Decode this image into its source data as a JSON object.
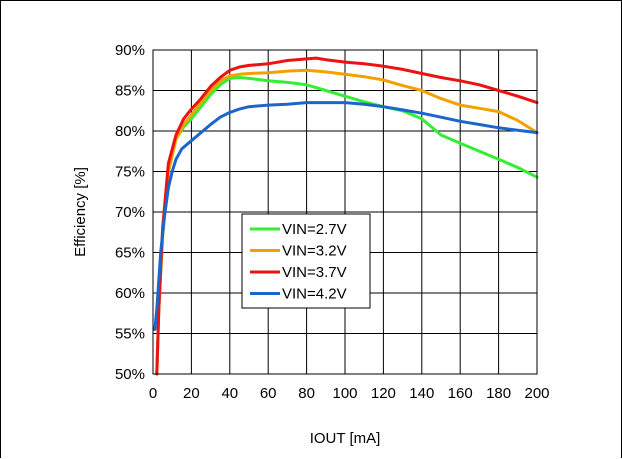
{
  "chart_data": {
    "type": "line",
    "title": "",
    "xlabel": "IOUT [mA]",
    "ylabel": "Efficiency [%]",
    "xlim": [
      0,
      200
    ],
    "ylim": [
      50,
      90
    ],
    "x_ticks": [
      0,
      20,
      40,
      60,
      80,
      100,
      120,
      140,
      160,
      180,
      200
    ],
    "y_ticks": [
      50,
      55,
      60,
      65,
      70,
      75,
      80,
      85,
      90
    ],
    "y_tick_suffix": "%",
    "grid": true,
    "legend_position": "center-left",
    "series": [
      {
        "name": "VIN=2.7V",
        "color": "#33ee33",
        "x": [
          2,
          3,
          5,
          8,
          12,
          16,
          20,
          25,
          30,
          35,
          40,
          45,
          50,
          60,
          70,
          80,
          90,
          100,
          110,
          120,
          130,
          140,
          150,
          160,
          170,
          180,
          190,
          200
        ],
        "y": [
          50,
          58,
          67,
          75,
          79,
          80.5,
          81.5,
          83,
          84.5,
          85.7,
          86.5,
          86.6,
          86.5,
          86.2,
          86,
          85.7,
          85,
          84.3,
          83.6,
          83,
          82.5,
          81.5,
          79.5,
          78.5,
          77.5,
          76.5,
          75.5,
          74.3
        ]
      },
      {
        "name": "VIN=3.2V",
        "color": "#f5a000",
        "x": [
          2,
          3,
          5,
          8,
          12,
          16,
          20,
          25,
          30,
          35,
          40,
          45,
          50,
          60,
          70,
          80,
          90,
          100,
          110,
          120,
          130,
          140,
          150,
          160,
          170,
          180,
          190,
          200
        ],
        "y": [
          50,
          58,
          67,
          75,
          79,
          80.8,
          82,
          83.5,
          85,
          86.2,
          86.8,
          87,
          87.1,
          87.2,
          87.4,
          87.5,
          87.3,
          87,
          86.7,
          86.3,
          85.6,
          85,
          84,
          83.2,
          82.8,
          82.4,
          81.3,
          79.8
        ]
      },
      {
        "name": "VIN=3.7V",
        "color": "#ee1111",
        "x": [
          2,
          3,
          5,
          8,
          12,
          16,
          20,
          25,
          30,
          35,
          40,
          45,
          50,
          60,
          70,
          80,
          85,
          90,
          100,
          110,
          120,
          130,
          140,
          150,
          160,
          170,
          180,
          190,
          200
        ],
        "y": [
          50,
          58,
          68,
          76,
          79.5,
          81.5,
          82.7,
          84,
          85.5,
          86.6,
          87.5,
          87.9,
          88.1,
          88.3,
          88.7,
          88.9,
          89,
          88.8,
          88.5,
          88.3,
          88,
          87.6,
          87.1,
          86.6,
          86.2,
          85.7,
          85,
          84.3,
          83.5
        ]
      },
      {
        "name": "VIN=4.2V",
        "color": "#1a66cc",
        "x": [
          1,
          2,
          4,
          6,
          8,
          10,
          12,
          15,
          20,
          25,
          30,
          35,
          40,
          45,
          50,
          60,
          70,
          80,
          90,
          100,
          110,
          120,
          130,
          140,
          150,
          160,
          170,
          180,
          190,
          200
        ],
        "y": [
          55.5,
          58,
          65,
          69.5,
          73,
          75,
          76.5,
          77.8,
          78.8,
          79.8,
          80.8,
          81.7,
          82.3,
          82.7,
          83,
          83.2,
          83.3,
          83.5,
          83.5,
          83.5,
          83.3,
          83,
          82.6,
          82.2,
          81.7,
          81.2,
          80.8,
          80.4,
          80.1,
          79.8
        ]
      }
    ]
  }
}
